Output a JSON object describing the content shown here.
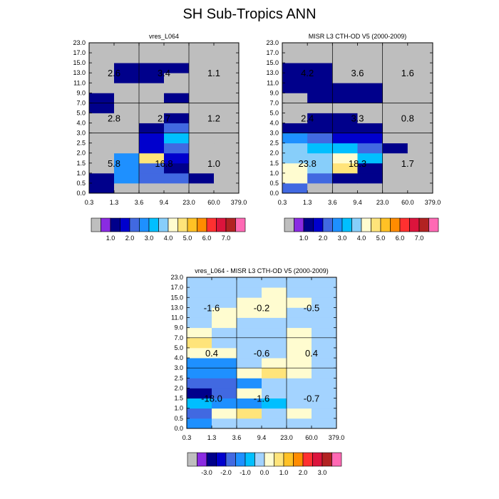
{
  "figure": {
    "title": "SH Sub-Tropics ANN"
  },
  "palettes": {
    "abs": [
      "#bebebe",
      "#8a2be2",
      "#00008b",
      "#0000cd",
      "#4169e1",
      "#1e90ff",
      "#00bfff",
      "#87cefa",
      "#fffcd0",
      "#ffe47a",
      "#ffc125",
      "#ff8c00",
      "#ff3030",
      "#dc143c",
      "#b22222",
      "#ff69b4"
    ],
    "diff": [
      "#bebebe",
      "#8a2be2",
      "#00008b",
      "#0000cd",
      "#4169e1",
      "#1e90ff",
      "#00bfff",
      "#a3d3ff",
      "#fffcd0",
      "#ffe47a",
      "#ffc125",
      "#ff8c00",
      "#ff3030",
      "#dc143c",
      "#b22222",
      "#ff69b4"
    ]
  },
  "chart_data": [
    {
      "type": "heatmap",
      "title": "vres_L064",
      "x_ticks": [
        "0.3",
        "1.3",
        "3.6",
        "9.4",
        "23.0",
        "60.0",
        "379.0"
      ],
      "y_ticks": [
        "0.0",
        "0.5",
        "1.0",
        "1.5",
        "2.0",
        "2.5",
        "3.0",
        "4.0",
        "5.0",
        "7.0",
        "9.0",
        "11.0",
        "13.0",
        "15.0",
        "17.0",
        "23.0"
      ],
      "levels": [
        0.2,
        0.5,
        1.0,
        1.5,
        2.0,
        2.5,
        3.0,
        3.5,
        4.0,
        4.5,
        5.0,
        6.0,
        7.0,
        8.0,
        9.0
      ],
      "colorbar_labels": [
        "1.0",
        "2.0",
        "3.0",
        "4.0",
        "5.0",
        "6.0",
        "7.0"
      ],
      "values": [
        [
          0.7,
          0.0,
          0.0,
          0.0,
          0.0,
          0.0
        ],
        [
          0.9,
          2.0,
          1.5,
          1.5,
          0.5,
          0.0
        ],
        [
          0.0,
          2.0,
          1.5,
          0.6,
          0.0,
          0.0
        ],
        [
          0.0,
          2.1,
          4.2,
          1.2,
          0.0,
          0.0
        ],
        [
          0.0,
          0.1,
          1.1,
          1.8,
          0.0,
          0.0
        ],
        [
          0.0,
          0.0,
          1.0,
          2.5,
          0.0,
          0.0
        ],
        [
          0.0,
          0.0,
          0.5,
          1.6,
          0.0,
          0.0
        ],
        [
          0.0,
          0.0,
          0.1,
          0.7,
          0.0,
          0.0
        ],
        [
          0.8,
          0.0,
          0.0,
          0.0,
          0.0,
          0.0
        ],
        [
          0.8,
          0.0,
          0.0,
          0.6,
          0.0,
          0.0
        ],
        [
          0.0,
          0.0,
          0.0,
          0.0,
          0.0,
          0.0
        ],
        [
          0.0,
          0.5,
          0.5,
          0.0,
          0.0,
          0.0
        ],
        [
          0.0,
          0.6,
          0.6,
          0.6,
          0.0,
          0.0
        ],
        [
          0.0,
          0.0,
          0.0,
          0.0,
          0.0,
          0.0
        ],
        [
          0.0,
          0.0,
          0.0,
          0.0,
          0.0,
          0.0
        ]
      ],
      "box_labels": [
        "5.8",
        "16.8",
        "1.0",
        "2.8",
        "2.7",
        "1.2",
        "2.6",
        "3.4",
        "1.1"
      ]
    },
    {
      "type": "heatmap",
      "title": "MISR L3 CTH-OD V5 (2000-2009)",
      "x_ticks": [
        "0.3",
        "1.3",
        "3.6",
        "9.4",
        "23.0",
        "60.0",
        "379.0"
      ],
      "y_ticks": [
        "0.0",
        "0.5",
        "1.0",
        "1.5",
        "2.0",
        "2.5",
        "3.0",
        "4.0",
        "5.0",
        "7.0",
        "9.0",
        "11.0",
        "13.0",
        "15.0",
        "17.0",
        "23.0"
      ],
      "levels": [
        0.2,
        0.5,
        1.0,
        1.5,
        2.0,
        2.5,
        3.0,
        3.5,
        4.0,
        4.5,
        5.0,
        6.0,
        7.0,
        8.0,
        9.0
      ],
      "colorbar_labels": [
        "1.0",
        "2.0",
        "3.0",
        "4.0",
        "5.0",
        "6.0",
        "7.0"
      ],
      "values": [
        [
          1.8,
          0.0,
          0.0,
          0.0,
          0.0,
          0.0
        ],
        [
          3.8,
          1.6,
          0.6,
          0.5,
          0.0,
          0.0
        ],
        [
          3.5,
          3.4,
          4.2,
          0.7,
          0.0,
          0.0
        ],
        [
          3.0,
          3.3,
          3.5,
          2.5,
          0.0,
          0.0
        ],
        [
          3.1,
          2.8,
          2.6,
          1.8,
          0.6,
          0.0
        ],
        [
          2.0,
          1.5,
          1.1,
          1.1,
          0.0,
          0.0
        ],
        [
          0.5,
          0.6,
          0.5,
          0.5,
          0.0,
          0.0
        ],
        [
          0.0,
          0.5,
          0.5,
          0.0,
          0.0,
          0.0
        ],
        [
          0.0,
          0.0,
          0.0,
          0.0,
          0.0,
          0.0
        ],
        [
          0.0,
          0.6,
          0.6,
          0.6,
          0.0,
          0.0
        ],
        [
          0.5,
          0.6,
          0.6,
          0.5,
          0.0,
          0.0
        ],
        [
          0.6,
          0.6,
          0.0,
          0.0,
          0.0,
          0.0
        ],
        [
          0.6,
          0.6,
          0.0,
          0.0,
          0.0,
          0.0
        ],
        [
          0.0,
          0.0,
          0.0,
          0.0,
          0.0,
          0.0
        ],
        [
          0.0,
          0.0,
          0.0,
          0.0,
          0.0,
          0.0
        ]
      ],
      "box_labels": [
        "23.8",
        "18.3",
        "1.7",
        "2.4",
        "3.3",
        "0.8",
        "4.2",
        "3.6",
        "1.6"
      ]
    },
    {
      "type": "heatmap",
      "title": "vres_L064 - MISR L3 CTH-OD V5 (2000-2009)",
      "x_ticks": [
        "0.3",
        "1.3",
        "3.6",
        "9.4",
        "23.0",
        "60.0",
        "379.0"
      ],
      "y_ticks": [
        "0.0",
        "0.5",
        "1.0",
        "1.5",
        "2.0",
        "2.5",
        "3.0",
        "4.0",
        "5.0",
        "7.0",
        "9.0",
        "11.0",
        "13.0",
        "15.0",
        "17.0",
        "23.0"
      ],
      "levels": [
        -4.0,
        -3.0,
        -2.5,
        -2.0,
        -1.5,
        -1.0,
        -0.5,
        0.0,
        0.5,
        1.0,
        1.5,
        2.0,
        3.0,
        4.0,
        5.0
      ],
      "colorbar_labels": [
        "-3.0",
        "-2.0",
        "-1.0",
        "0.0",
        "1.0",
        "2.0",
        "3.0"
      ],
      "values": [
        [
          -1.2,
          -0.1,
          -0.1,
          -0.1,
          -0.1,
          -0.1
        ],
        [
          -1.6,
          0.3,
          0.7,
          -0.1,
          0.2,
          -0.1
        ],
        [
          -0.8,
          -1.5,
          -1.2,
          -0.6,
          -0.1,
          -0.1
        ],
        [
          -2.6,
          -1.6,
          0.2,
          -0.1,
          -0.1,
          -0.1
        ],
        [
          -1.9,
          -1.6,
          -1.2,
          -0.1,
          -0.1,
          -0.1
        ],
        [
          -1.3,
          -1.3,
          0.3,
          0.8,
          0.1,
          -0.1
        ],
        [
          -1.2,
          -1.2,
          -0.1,
          0.3,
          0.3,
          -0.1
        ],
        [
          0.1,
          0.1,
          -0.1,
          -0.1,
          0.3,
          -0.1
        ],
        [
          0.8,
          -0.1,
          -0.1,
          -0.1,
          0.3,
          -0.1
        ],
        [
          0.1,
          -0.1,
          -0.1,
          -0.1,
          0.3,
          -0.1
        ],
        [
          -0.1,
          0.1,
          -0.1,
          -0.1,
          -0.1,
          -0.1
        ],
        [
          -0.1,
          0.1,
          0.1,
          0.1,
          -0.1,
          -0.1
        ],
        [
          -0.1,
          -0.1,
          0.1,
          0.1,
          0.1,
          -0.1
        ],
        [
          -0.1,
          -0.1,
          -0.1,
          0.1,
          -0.1,
          -0.1
        ],
        [
          -0.1,
          -0.1,
          -0.1,
          -0.1,
          -0.1,
          -0.1
        ]
      ],
      "box_labels": [
        "-18.0",
        "-1.6",
        "-0.7",
        "0.4",
        "-0.6",
        "0.4",
        "-1.6",
        "-0.2",
        "-0.5"
      ]
    }
  ]
}
